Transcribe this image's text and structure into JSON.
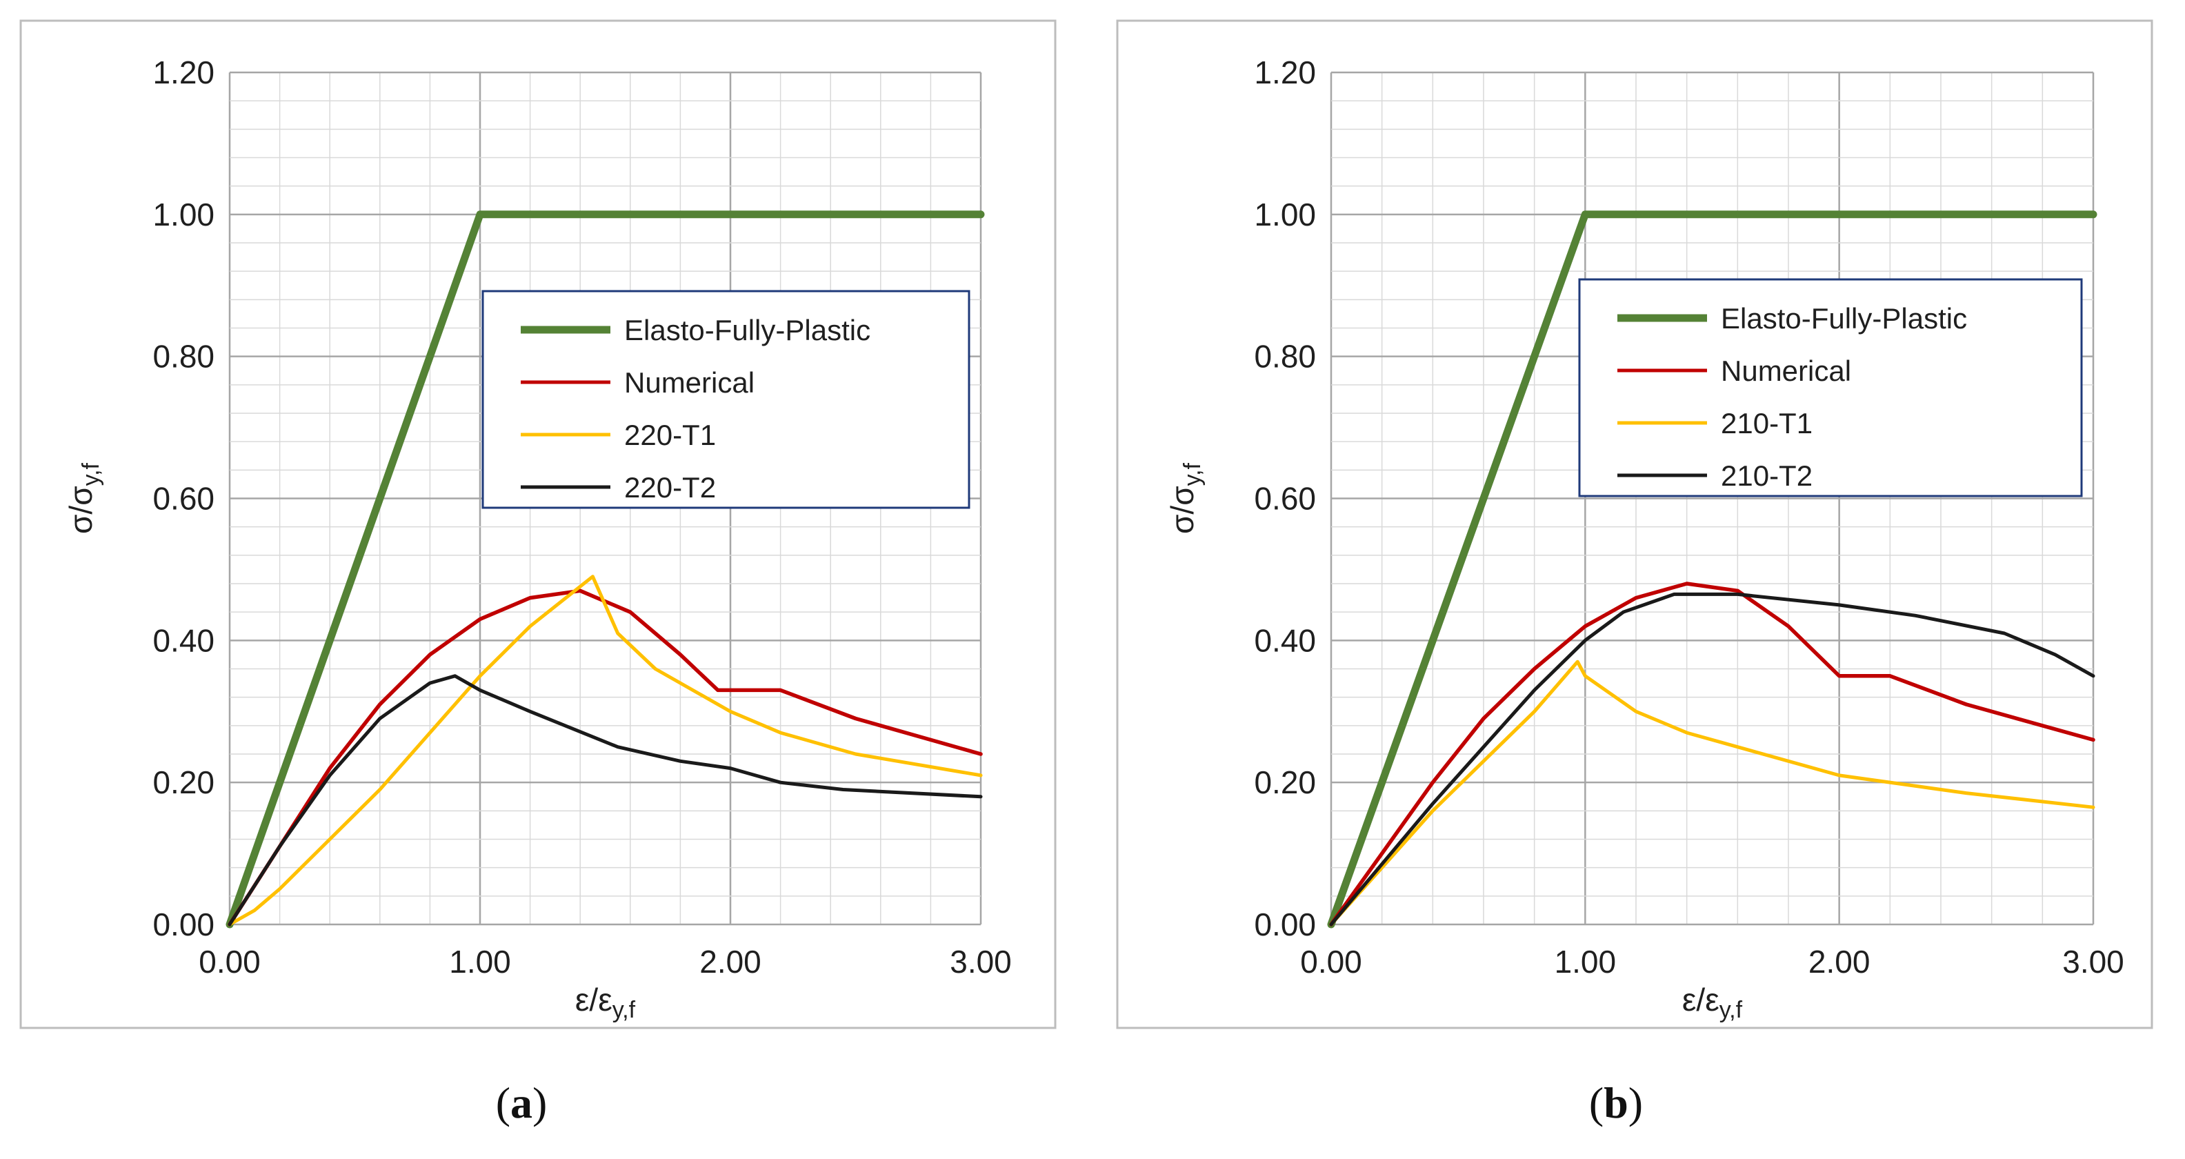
{
  "chart_data": [
    {
      "type": "line",
      "panel_label": "a",
      "xlabel": "ε/ε",
      "xlabel_sub": "y,f",
      "ylabel": "σ/σ",
      "ylabel_sub": "y,f",
      "xlim": [
        0,
        3
      ],
      "ylim": [
        0,
        1.2
      ],
      "xticks": [
        0,
        1,
        2,
        3
      ],
      "xtick_labels": [
        "0.00",
        "1.00",
        "2.00",
        "3.00"
      ],
      "yticks": [
        0,
        0.2,
        0.4,
        0.6,
        0.8,
        1.0,
        1.2
      ],
      "ytick_labels": [
        "0.00",
        "0.20",
        "0.40",
        "0.60",
        "0.80",
        "1.00",
        "1.20"
      ],
      "grid": true,
      "legend_position": "upper-right",
      "series": [
        {
          "name": "Elasto-Fully-Plastic",
          "color": "#548235",
          "x": [
            0,
            1.0,
            3.0
          ],
          "y": [
            0,
            1.0,
            1.0
          ]
        },
        {
          "name": "Numerical",
          "color": "#c00000",
          "x": [
            0,
            0.2,
            0.4,
            0.6,
            0.8,
            1.0,
            1.2,
            1.4,
            1.6,
            1.8,
            1.95,
            2.2,
            2.5,
            3.0
          ],
          "y": [
            0,
            0.11,
            0.22,
            0.31,
            0.38,
            0.43,
            0.46,
            0.47,
            0.44,
            0.38,
            0.33,
            0.33,
            0.29,
            0.24
          ]
        },
        {
          "name": "220-T1",
          "color": "#ffc000",
          "x": [
            0,
            0.1,
            0.2,
            0.4,
            0.6,
            0.8,
            1.0,
            1.2,
            1.45,
            1.55,
            1.7,
            2.0,
            2.2,
            2.5,
            3.0
          ],
          "y": [
            0,
            0.02,
            0.05,
            0.12,
            0.19,
            0.27,
            0.35,
            0.42,
            0.49,
            0.41,
            0.36,
            0.3,
            0.27,
            0.24,
            0.21
          ]
        },
        {
          "name": "220-T2",
          "color": "#1a1a1a",
          "x": [
            0,
            0.2,
            0.4,
            0.6,
            0.8,
            0.9,
            1.0,
            1.2,
            1.55,
            1.8,
            2.0,
            2.2,
            2.45,
            3.0
          ],
          "y": [
            0,
            0.11,
            0.21,
            0.29,
            0.34,
            0.35,
            0.33,
            0.3,
            0.25,
            0.23,
            0.22,
            0.2,
            0.19,
            0.18
          ]
        }
      ]
    },
    {
      "type": "line",
      "panel_label": "b",
      "xlabel": "ε/ε",
      "xlabel_sub": "y,f",
      "ylabel": "σ/σ",
      "ylabel_sub": "y,f",
      "xlim": [
        0,
        3
      ],
      "ylim": [
        0,
        1.2
      ],
      "xticks": [
        0,
        1,
        2,
        3
      ],
      "xtick_labels": [
        "0.00",
        "1.00",
        "2.00",
        "3.00"
      ],
      "yticks": [
        0,
        0.2,
        0.4,
        0.6,
        0.8,
        1.0,
        1.2
      ],
      "ytick_labels": [
        "0.00",
        "0.20",
        "0.40",
        "0.60",
        "0.80",
        "1.00",
        "1.20"
      ],
      "grid": true,
      "legend_position": "upper-right",
      "series": [
        {
          "name": "Elasto-Fully-Plastic",
          "color": "#548235",
          "x": [
            0,
            1.0,
            3.0
          ],
          "y": [
            0,
            1.0,
            1.0
          ]
        },
        {
          "name": "Numerical",
          "color": "#c00000",
          "x": [
            0,
            0.2,
            0.4,
            0.6,
            0.8,
            1.0,
            1.2,
            1.4,
            1.6,
            1.8,
            2.0,
            2.2,
            2.5,
            3.0
          ],
          "y": [
            0,
            0.1,
            0.2,
            0.29,
            0.36,
            0.42,
            0.46,
            0.48,
            0.47,
            0.42,
            0.35,
            0.35,
            0.31,
            0.26
          ]
        },
        {
          "name": "210-T1",
          "color": "#ffc000",
          "x": [
            0,
            0.2,
            0.4,
            0.6,
            0.8,
            0.97,
            1.0,
            1.2,
            1.4,
            1.6,
            2.0,
            2.5,
            3.0
          ],
          "y": [
            0,
            0.08,
            0.16,
            0.23,
            0.3,
            0.37,
            0.35,
            0.3,
            0.27,
            0.25,
            0.21,
            0.185,
            0.165
          ]
        },
        {
          "name": "210-T2",
          "color": "#1a1a1a",
          "x": [
            0,
            0.2,
            0.4,
            0.6,
            0.8,
            1.0,
            1.15,
            1.35,
            1.6,
            2.0,
            2.3,
            2.65,
            2.85,
            3.0
          ],
          "y": [
            0,
            0.085,
            0.17,
            0.25,
            0.33,
            0.4,
            0.44,
            0.465,
            0.465,
            0.45,
            0.435,
            0.41,
            0.38,
            0.35
          ]
        }
      ]
    }
  ]
}
